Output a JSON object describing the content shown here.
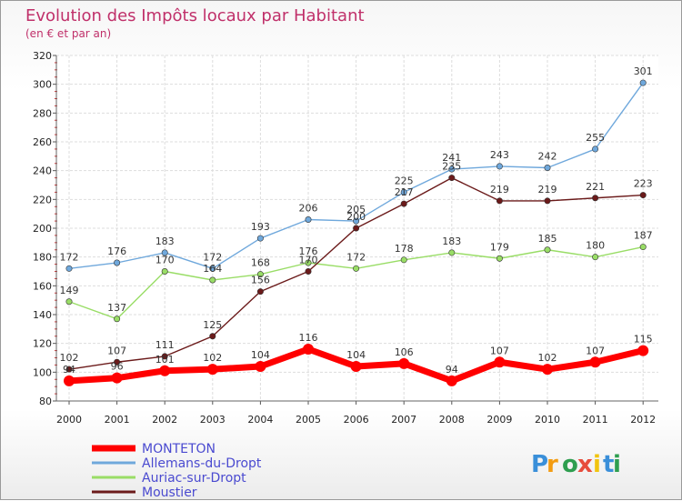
{
  "chart_data": {
    "type": "line",
    "title": "Evolution des Impôts locaux par Habitant",
    "subtitle": "(en € et par an)",
    "categories": [
      "2000",
      "2001",
      "2002",
      "2003",
      "2004",
      "2005",
      "2006",
      "2007",
      "2008",
      "2009",
      "2010",
      "2011",
      "2012"
    ],
    "ylim": [
      80,
      320
    ],
    "yticks": [
      80,
      100,
      120,
      140,
      160,
      180,
      200,
      220,
      240,
      260,
      280,
      300,
      320
    ],
    "grid": true,
    "legend_position": "bottom-left",
    "series": [
      {
        "name": "MONTETON",
        "color": "#ff0000",
        "values": [
          94,
          96,
          101,
          102,
          104,
          116,
          104,
          106,
          94,
          107,
          102,
          107,
          115
        ]
      },
      {
        "name": "Allemans-du-Dropt",
        "color": "#6fa8dc",
        "values": [
          172,
          176,
          183,
          172,
          193,
          206,
          205,
          225,
          241,
          243,
          242,
          255,
          301
        ]
      },
      {
        "name": "Auriac-sur-Dropt",
        "color": "#99dd66",
        "values": [
          149,
          137,
          170,
          164,
          168,
          176,
          172,
          178,
          183,
          179,
          185,
          180,
          187
        ]
      },
      {
        "name": "Moustier",
        "color": "#6b1a1a",
        "values": [
          102,
          107,
          111,
          125,
          156,
          170,
          200,
          217,
          235,
          219,
          219,
          221,
          223
        ]
      }
    ]
  },
  "logo": {
    "text": "Proxiti"
  }
}
